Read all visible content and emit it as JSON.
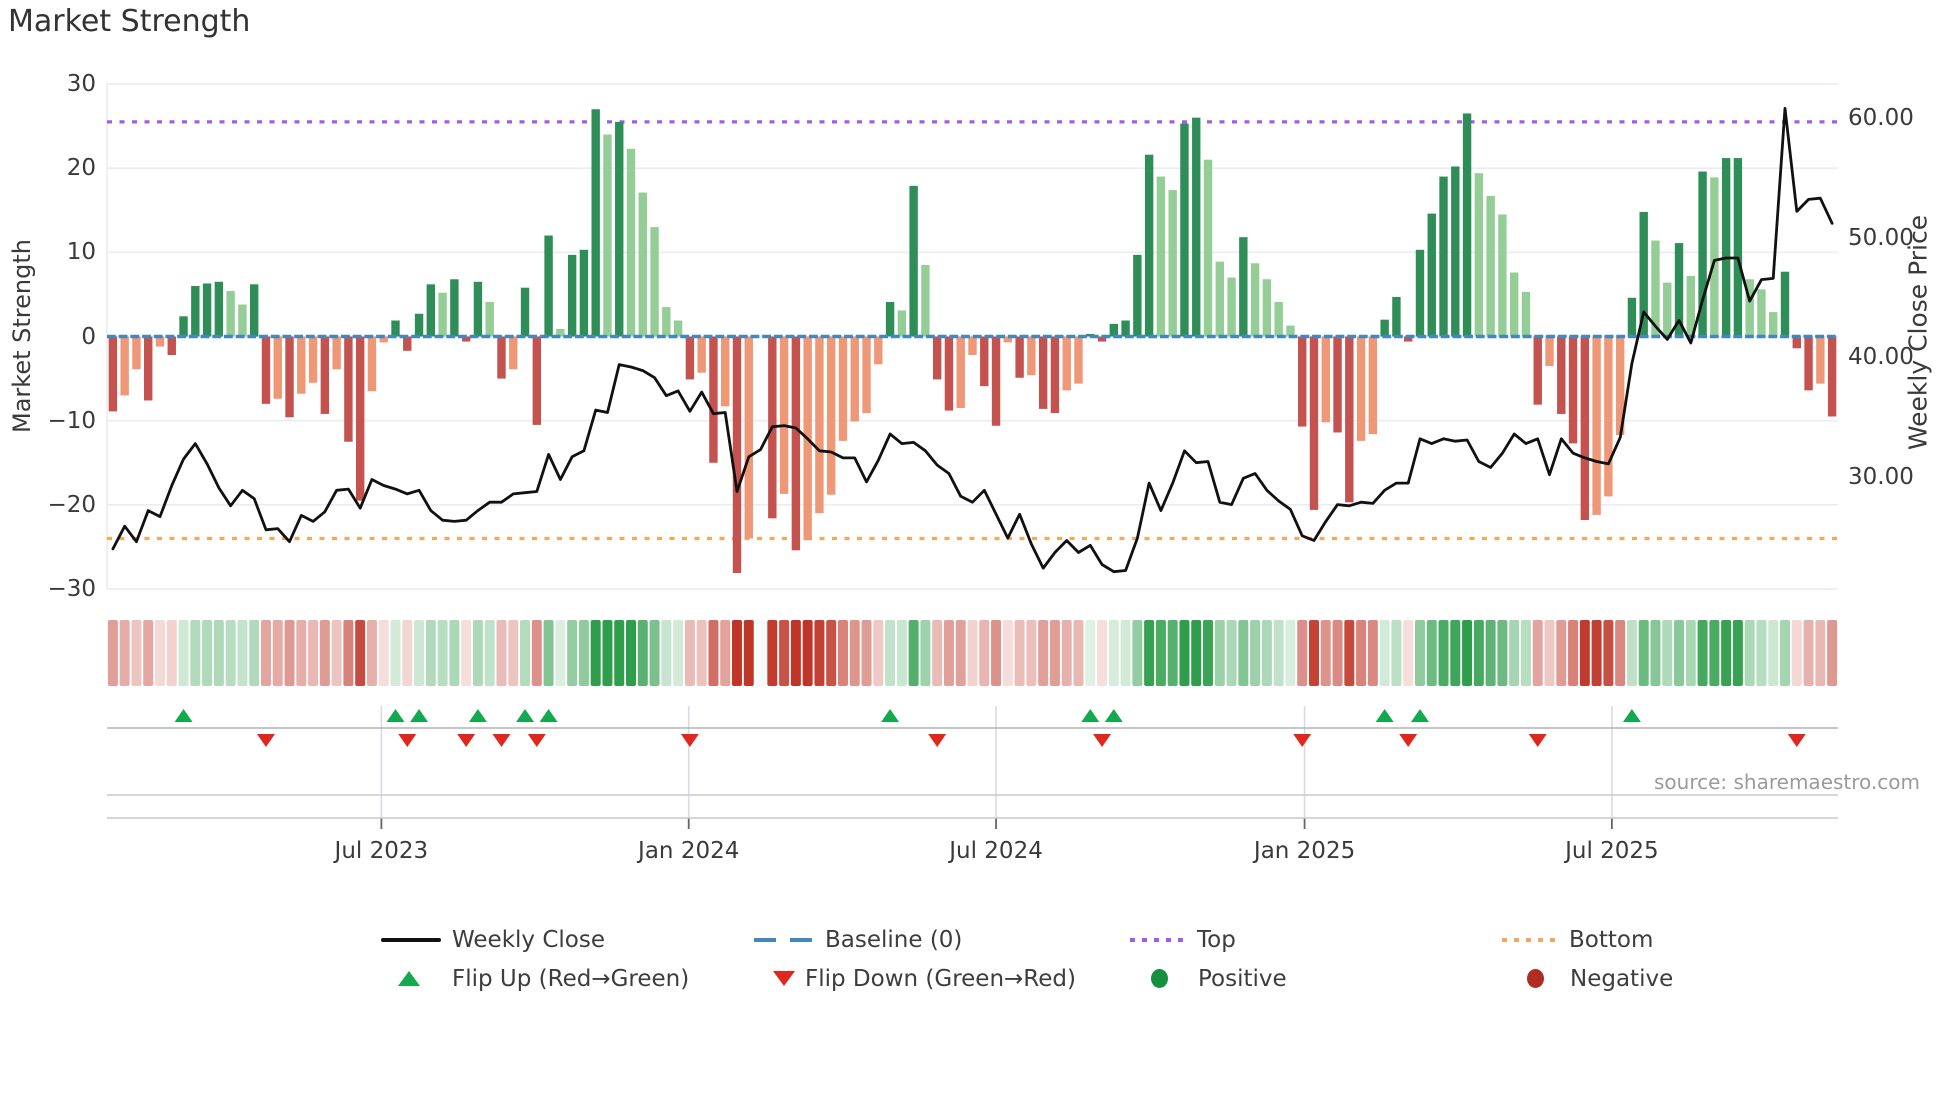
{
  "title": "Market Strength",
  "source": "source: sharemaestro.com",
  "left_axis": {
    "label": "Market Strength",
    "ticks": [
      30,
      20,
      10,
      0,
      -10,
      -20,
      -30
    ],
    "ylim": [
      -30,
      30
    ]
  },
  "right_axis": {
    "label": "Weekly Close Price",
    "ticks": [
      "60.00",
      "50.00",
      "40.00",
      "30.00"
    ],
    "tick_values": [
      60,
      50,
      40,
      30
    ]
  },
  "x_axis": {
    "labels": [
      "Jul 2023",
      "Jan 2024",
      "Jul 2024",
      "Jan 2025",
      "Jul 2025"
    ],
    "week_positions": [
      23.8,
      49.9,
      76.0,
      102.2,
      128.3
    ]
  },
  "legend": {
    "weekly_close": "Weekly Close",
    "baseline": "Baseline (0)",
    "top": "Top",
    "bottom": "Bottom",
    "flip_up": "Flip Up (Red→Green)",
    "flip_down": "Flip Down (Green→Red)",
    "positive": "Positive",
    "negative": "Negative"
  },
  "colors": {
    "pos_dark": "#2f8e58",
    "pos_light": "#94ce96",
    "neg_dark": "#c4524e",
    "neg_light": "#ee9877",
    "heat_pos": "#2f9e4c",
    "heat_neg": "#bf3629",
    "line": "#111111",
    "baseline": "#4287bd",
    "top_line": "#a25ce6",
    "bottom_line": "#f5a75c",
    "flip_up": "#13a94e",
    "flip_down": "#e0271e",
    "grid": "#e9ecf4",
    "panel_line": "#c9c9c9",
    "marker_line": "#b3b3b3",
    "month_grid": "#d7dbe3",
    "tick_text": "#3a3a3a"
  },
  "chart_data": {
    "type": "combo",
    "x_unit": "week",
    "n_points": 147,
    "date_range": [
      "Feb 2023",
      "Nov 2025"
    ],
    "baseline": 0,
    "top_line": 25.5,
    "bottom_line": -24,
    "flip_up_weeks": [
      7,
      25,
      27,
      32,
      36,
      38,
      67,
      84,
      86,
      109,
      112,
      130
    ],
    "flip_down_weeks": [
      14,
      26,
      31,
      34,
      37,
      50,
      71,
      85,
      102,
      111,
      122,
      144
    ],
    "series": [
      {
        "name": "Market Strength",
        "type": "bar",
        "axis": "left",
        "values": [
          -8.9,
          -7.0,
          -3.9,
          -7.6,
          -1.2,
          -2.2,
          2.4,
          6.0,
          6.3,
          6.5,
          5.4,
          3.8,
          6.2,
          -8.0,
          -7.4,
          -9.6,
          -6.8,
          -5.5,
          -9.2,
          -3.9,
          -12.5,
          -19.5,
          -6.5,
          -0.7,
          1.9,
          -1.7,
          2.7,
          6.2,
          5.2,
          6.8,
          -0.6,
          6.5,
          4.1,
          -5.0,
          -3.9,
          5.8,
          -10.5,
          12.0,
          0.9,
          9.7,
          10.3,
          27.0,
          24.0,
          25.5,
          22.3,
          17.1,
          13.0,
          3.5,
          1.9,
          -5.1,
          -4.3,
          -15.0,
          -8.3,
          -28.1,
          -24.0,
          0,
          -21.6,
          -18.7,
          -25.4,
          -24.2,
          -21.0,
          -18.8,
          -12.4,
          -10.1,
          -9.1,
          -3.3,
          4.1,
          3.1,
          17.9,
          8.5,
          -5.1,
          -8.8,
          -8.5,
          -2.2,
          -5.9,
          -10.6,
          -0.7,
          -4.9,
          -4.6,
          -8.6,
          -9.1,
          -6.4,
          -5.6,
          0.3,
          -0.6,
          1.5,
          1.9,
          9.7,
          21.6,
          19.0,
          17.4,
          25.3,
          26.0,
          21.0,
          8.9,
          7.0,
          11.8,
          8.7,
          6.8,
          4.1,
          1.3,
          -10.7,
          -20.6,
          -10.2,
          -11.4,
          -19.7,
          -12.4,
          -11.6,
          2.0,
          4.7,
          -0.6,
          10.3,
          14.6,
          19.0,
          20.2,
          26.5,
          19.4,
          16.7,
          14.5,
          7.6,
          5.3,
          -8.1,
          -3.5,
          -9.2,
          -12.7,
          -21.8,
          -21.2,
          -19.0,
          -11.7,
          4.6,
          14.8,
          11.4,
          6.4,
          11.1,
          7.2,
          19.6,
          18.9,
          21.2,
          21.2,
          6.8,
          5.6,
          2.9,
          7.7,
          -1.4,
          -6.4,
          -5.6,
          -9.5
        ]
      },
      {
        "name": "Weekly Close",
        "type": "line",
        "axis": "right",
        "values": [
          24.0,
          25.9,
          24.6,
          27.2,
          26.7,
          29.3,
          31.5,
          32.8,
          31.1,
          29.1,
          27.6,
          28.9,
          28.2,
          25.6,
          25.7,
          24.6,
          26.8,
          26.3,
          27.1,
          28.9,
          29.0,
          27.4,
          29.8,
          29.3,
          29.0,
          28.6,
          28.9,
          27.2,
          26.4,
          26.3,
          26.4,
          27.2,
          27.9,
          27.9,
          28.6,
          28.7,
          28.8,
          31.9,
          29.8,
          31.7,
          32.2,
          35.6,
          35.4,
          39.4,
          39.2,
          38.9,
          38.3,
          36.8,
          37.2,
          35.5,
          37.1,
          35.3,
          35.4,
          28.8,
          31.7,
          32.3,
          34.2,
          34.3,
          34.1,
          33.2,
          32.2,
          32.1,
          31.6,
          31.6,
          29.6,
          31.4,
          33.6,
          32.8,
          32.9,
          32.2,
          31.0,
          30.3,
          28.4,
          27.9,
          28.9,
          26.9,
          24.9,
          26.9,
          24.4,
          22.4,
          23.7,
          24.7,
          23.7,
          24.3,
          22.7,
          22.1,
          22.2,
          24.9,
          29.5,
          27.2,
          29.5,
          32.2,
          31.2,
          31.3,
          27.9,
          27.7,
          29.9,
          30.3,
          28.9,
          28.0,
          27.3,
          25.1,
          24.7,
          26.3,
          27.7,
          27.6,
          27.9,
          27.8,
          28.9,
          29.5,
          29.5,
          33.2,
          32.8,
          33.2,
          33.0,
          33.1,
          31.3,
          30.8,
          32.0,
          33.6,
          32.8,
          33.2,
          30.2,
          33.2,
          32.0,
          31.6,
          31.3,
          31.1,
          33.3,
          39.5,
          43.8,
          42.6,
          41.5,
          43.1,
          41.2,
          44.8,
          48.1,
          48.3,
          48.3,
          44.7,
          46.5,
          46.6,
          60.8,
          52.2,
          53.2,
          53.3,
          51.2
        ]
      },
      {
        "name": "Strength Heatmap",
        "type": "heatmap",
        "note": "color intensity follows Market Strength bar values"
      }
    ]
  }
}
